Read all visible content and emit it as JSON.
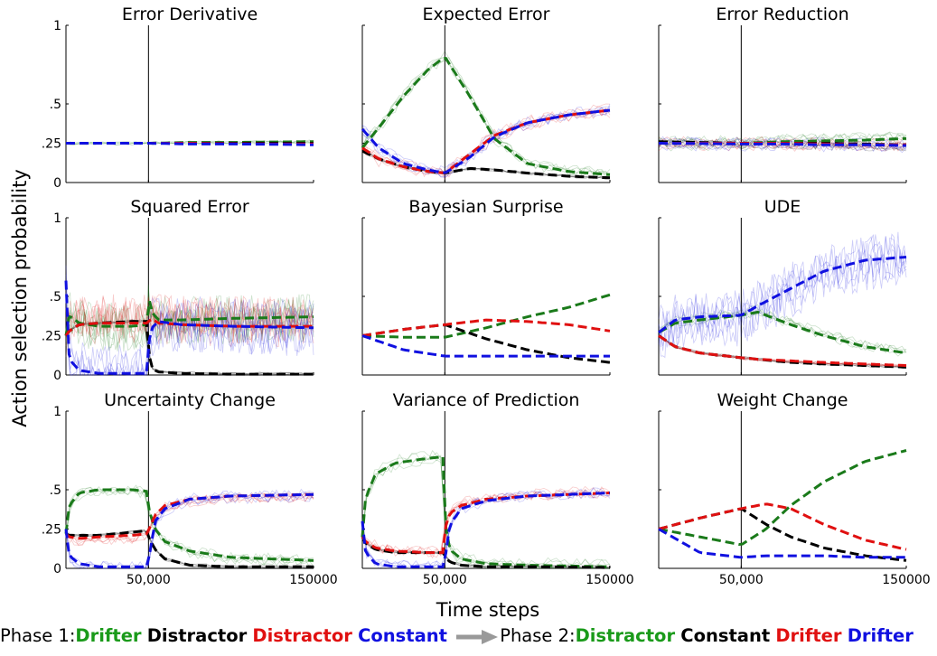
{
  "figure": {
    "ylabel": "Action selection probability",
    "xlabel": "Time steps",
    "colors": {
      "green": "#1a7a1a",
      "black": "#000000",
      "red": "#e01010",
      "blue": "#1010e0"
    }
  },
  "legend": {
    "phase1_label": "Phase 1:",
    "phase1_items": [
      {
        "text": "Drifter",
        "color": "#1a9a1a"
      },
      {
        "text": "Distractor",
        "color": "#000000"
      },
      {
        "text": "Distractor",
        "color": "#e01010"
      },
      {
        "text": "Constant",
        "color": "#1010e0"
      }
    ],
    "phase2_label": "Phase 2:",
    "phase2_items": [
      {
        "text": "Distractor",
        "color": "#1a9a1a"
      },
      {
        "text": "Constant",
        "color": "#000000"
      },
      {
        "text": "Drifter",
        "color": "#e01010"
      },
      {
        "text": "Drifter",
        "color": "#1010e0"
      }
    ]
  },
  "chart_data": [
    {
      "type": "line",
      "title": "Error Derivative",
      "xlim": [
        0,
        150000
      ],
      "ylim": [
        0,
        1
      ],
      "yticks": [
        "0",
        ".25",
        ".5",
        "1"
      ],
      "xticks": [],
      "phase_boundary": 50000,
      "x": [
        0,
        25000,
        50000,
        75000,
        100000,
        125000,
        150000
      ],
      "series": [
        {
          "color": "green",
          "values": [
            0.25,
            0.25,
            0.25,
            0.255,
            0.255,
            0.258,
            0.26
          ],
          "noise": "low"
        },
        {
          "color": "black",
          "values": [
            0.25,
            0.25,
            0.25,
            0.25,
            0.25,
            0.25,
            0.25
          ],
          "noise": "none"
        },
        {
          "color": "red",
          "values": [
            0.25,
            0.25,
            0.25,
            0.25,
            0.247,
            0.245,
            0.245
          ],
          "noise": "none"
        },
        {
          "color": "blue",
          "values": [
            0.25,
            0.25,
            0.25,
            0.245,
            0.245,
            0.243,
            0.24
          ],
          "noise": "none"
        }
      ]
    },
    {
      "type": "line",
      "title": "Expected Error",
      "xlim": [
        0,
        150000
      ],
      "ylim": [
        0,
        1
      ],
      "yticks": [],
      "xticks": [],
      "phase_boundary": 50000,
      "x": [
        0,
        10000,
        25000,
        40000,
        50000,
        65000,
        80000,
        100000,
        125000,
        150000
      ],
      "series": [
        {
          "color": "green",
          "values": [
            0.22,
            0.35,
            0.55,
            0.72,
            0.8,
            0.55,
            0.28,
            0.12,
            0.07,
            0.05
          ],
          "noise": "medium"
        },
        {
          "color": "black",
          "values": [
            0.2,
            0.15,
            0.1,
            0.07,
            0.06,
            0.09,
            0.08,
            0.06,
            0.04,
            0.03
          ],
          "noise": "low"
        },
        {
          "color": "red",
          "values": [
            0.22,
            0.15,
            0.1,
            0.07,
            0.06,
            0.18,
            0.3,
            0.38,
            0.43,
            0.46
          ],
          "noise": "medium"
        },
        {
          "color": "blue",
          "values": [
            0.34,
            0.22,
            0.12,
            0.08,
            0.06,
            0.16,
            0.29,
            0.38,
            0.43,
            0.46
          ],
          "noise": "medium"
        }
      ]
    },
    {
      "type": "line",
      "title": "Error Reduction",
      "xlim": [
        0,
        150000
      ],
      "ylim": [
        0,
        1
      ],
      "yticks": [],
      "xticks": [],
      "phase_boundary": 50000,
      "x": [
        0,
        25000,
        50000,
        75000,
        100000,
        125000,
        150000
      ],
      "series": [
        {
          "color": "green",
          "values": [
            0.25,
            0.25,
            0.25,
            0.26,
            0.265,
            0.27,
            0.28
          ],
          "noise": "medium"
        },
        {
          "color": "black",
          "values": [
            0.26,
            0.255,
            0.25,
            0.25,
            0.25,
            0.245,
            0.24
          ],
          "noise": "medium"
        },
        {
          "color": "red",
          "values": [
            0.25,
            0.25,
            0.25,
            0.25,
            0.245,
            0.24,
            0.24
          ],
          "noise": "medium"
        },
        {
          "color": "blue",
          "values": [
            0.25,
            0.248,
            0.245,
            0.245,
            0.24,
            0.24,
            0.235
          ],
          "noise": "medium"
        }
      ]
    },
    {
      "type": "line",
      "title": "Squared Error",
      "xlim": [
        0,
        150000
      ],
      "ylim": [
        0,
        1
      ],
      "yticks": [
        "0",
        ".25",
        ".5",
        "1"
      ],
      "xticks": [],
      "phase_boundary": 50000,
      "x": [
        0,
        2000,
        8000,
        20000,
        40000,
        49000,
        50000,
        52000,
        56000,
        70000,
        100000,
        150000
      ],
      "series": [
        {
          "color": "green",
          "values": [
            0.25,
            0.38,
            0.33,
            0.31,
            0.31,
            0.32,
            0.5,
            0.4,
            0.35,
            0.35,
            0.36,
            0.37
          ],
          "noise": "high"
        },
        {
          "color": "black",
          "values": [
            0.25,
            0.28,
            0.32,
            0.33,
            0.34,
            0.34,
            0.15,
            0.04,
            0.02,
            0.01,
            0.005,
            0.005
          ],
          "noise": "low"
        },
        {
          "color": "red",
          "values": [
            0.25,
            0.28,
            0.32,
            0.33,
            0.33,
            0.33,
            0.34,
            0.36,
            0.33,
            0.32,
            0.31,
            0.31
          ],
          "noise": "high"
        },
        {
          "color": "blue",
          "values": [
            0.6,
            0.1,
            0.03,
            0.01,
            0.01,
            0.01,
            0.2,
            0.3,
            0.34,
            0.32,
            0.31,
            0.3
          ],
          "noise": "high"
        }
      ]
    },
    {
      "type": "line",
      "title": "Bayesian Surprise",
      "xlim": [
        0,
        150000
      ],
      "ylim": [
        0,
        1
      ],
      "yticks": [],
      "xticks": [],
      "phase_boundary": 50000,
      "x": [
        0,
        25000,
        50000,
        75000,
        100000,
        125000,
        150000
      ],
      "series": [
        {
          "color": "green",
          "values": [
            0.25,
            0.24,
            0.24,
            0.3,
            0.37,
            0.43,
            0.51
          ],
          "noise": "none"
        },
        {
          "color": "black",
          "values": [
            0.25,
            0.29,
            0.32,
            0.23,
            0.16,
            0.11,
            0.08
          ],
          "noise": "none"
        },
        {
          "color": "red",
          "values": [
            0.25,
            0.29,
            0.32,
            0.35,
            0.34,
            0.32,
            0.28
          ],
          "noise": "none"
        },
        {
          "color": "blue",
          "values": [
            0.25,
            0.16,
            0.12,
            0.12,
            0.12,
            0.12,
            0.12
          ],
          "noise": "none"
        }
      ]
    },
    {
      "type": "line",
      "title": "UDE",
      "xlim": [
        0,
        150000
      ],
      "ylim": [
        0,
        1
      ],
      "yticks": [],
      "xticks": [],
      "phase_boundary": 50000,
      "x": [
        0,
        10000,
        25000,
        50000,
        60000,
        80000,
        100000,
        125000,
        150000
      ],
      "series": [
        {
          "color": "green",
          "values": [
            0.27,
            0.33,
            0.35,
            0.38,
            0.4,
            0.32,
            0.25,
            0.18,
            0.14
          ],
          "noise": "medium"
        },
        {
          "color": "black",
          "values": [
            0.25,
            0.18,
            0.14,
            0.11,
            0.1,
            0.08,
            0.07,
            0.06,
            0.05
          ],
          "noise": "low"
        },
        {
          "color": "red",
          "values": [
            0.25,
            0.18,
            0.14,
            0.11,
            0.1,
            0.09,
            0.08,
            0.07,
            0.06
          ],
          "noise": "low"
        },
        {
          "color": "blue",
          "values": [
            0.27,
            0.35,
            0.37,
            0.38,
            0.44,
            0.55,
            0.66,
            0.73,
            0.75
          ],
          "noise": "high"
        }
      ]
    },
    {
      "type": "line",
      "title": "Uncertainty Change",
      "xlim": [
        0,
        150000
      ],
      "ylim": [
        0,
        1
      ],
      "yticks": [
        "0",
        ".25",
        ".5",
        "1"
      ],
      "xticks": [
        "50,000",
        "150000"
      ],
      "phase_boundary": 50000,
      "x": [
        0,
        2000,
        8000,
        20000,
        40000,
        49000,
        50000,
        54000,
        60000,
        75000,
        100000,
        150000
      ],
      "series": [
        {
          "color": "green",
          "values": [
            0.22,
            0.4,
            0.48,
            0.5,
            0.5,
            0.49,
            0.38,
            0.25,
            0.17,
            0.11,
            0.07,
            0.05
          ],
          "noise": "medium"
        },
        {
          "color": "black",
          "values": [
            0.22,
            0.21,
            0.21,
            0.21,
            0.23,
            0.24,
            0.2,
            0.12,
            0.06,
            0.02,
            0.01,
            0.01
          ],
          "noise": "low"
        },
        {
          "color": "red",
          "values": [
            0.22,
            0.2,
            0.19,
            0.2,
            0.21,
            0.22,
            0.24,
            0.34,
            0.4,
            0.44,
            0.46,
            0.47
          ],
          "noise": "medium"
        },
        {
          "color": "blue",
          "values": [
            0.25,
            0.08,
            0.03,
            0.01,
            0.01,
            0.01,
            0.05,
            0.3,
            0.38,
            0.44,
            0.46,
            0.47
          ],
          "noise": "medium"
        }
      ]
    },
    {
      "type": "line",
      "title": "Variance of Prediction",
      "xlim": [
        0,
        150000
      ],
      "ylim": [
        0,
        1
      ],
      "yticks": [],
      "xticks": [
        "50,000",
        "150000"
      ],
      "phase_boundary": 50000,
      "x": [
        0,
        2000,
        8000,
        20000,
        40000,
        49000,
        50000,
        53000,
        60000,
        75000,
        100000,
        150000
      ],
      "series": [
        {
          "color": "green",
          "values": [
            0.2,
            0.45,
            0.6,
            0.67,
            0.7,
            0.71,
            0.3,
            0.12,
            0.06,
            0.03,
            0.02,
            0.01
          ],
          "noise": "medium"
        },
        {
          "color": "black",
          "values": [
            0.2,
            0.16,
            0.12,
            0.1,
            0.1,
            0.1,
            0.08,
            0.04,
            0.02,
            0.01,
            0.01,
            0.005
          ],
          "noise": "low"
        },
        {
          "color": "red",
          "values": [
            0.2,
            0.17,
            0.13,
            0.11,
            0.1,
            0.1,
            0.25,
            0.35,
            0.4,
            0.44,
            0.46,
            0.48
          ],
          "noise": "medium"
        },
        {
          "color": "blue",
          "values": [
            0.3,
            0.1,
            0.03,
            0.01,
            0.01,
            0.01,
            0.05,
            0.28,
            0.38,
            0.43,
            0.46,
            0.48
          ],
          "noise": "medium"
        }
      ]
    },
    {
      "type": "line",
      "title": "Weight Change",
      "xlim": [
        0,
        150000
      ],
      "ylim": [
        0,
        1
      ],
      "yticks": [],
      "xticks": [
        "50,000",
        "150000"
      ],
      "phase_boundary": 50000,
      "x": [
        0,
        25000,
        50000,
        65000,
        80000,
        100000,
        125000,
        150000
      ],
      "series": [
        {
          "color": "green",
          "values": [
            0.25,
            0.2,
            0.15,
            0.25,
            0.4,
            0.55,
            0.68,
            0.75
          ],
          "noise": "none"
        },
        {
          "color": "black",
          "values": [
            0.25,
            0.32,
            0.38,
            0.28,
            0.2,
            0.13,
            0.08,
            0.05
          ],
          "noise": "none"
        },
        {
          "color": "red",
          "values": [
            0.25,
            0.32,
            0.38,
            0.41,
            0.38,
            0.28,
            0.18,
            0.12
          ],
          "noise": "none"
        },
        {
          "color": "blue",
          "values": [
            0.25,
            0.1,
            0.07,
            0.08,
            0.08,
            0.08,
            0.07,
            0.07
          ],
          "noise": "none"
        }
      ]
    }
  ]
}
